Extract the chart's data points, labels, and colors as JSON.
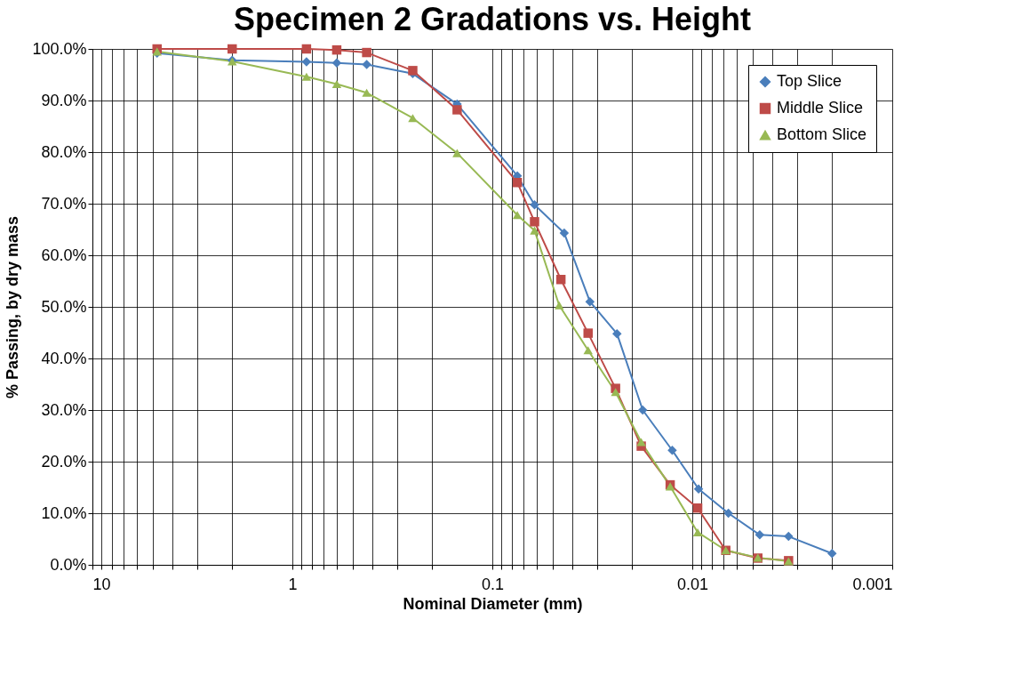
{
  "chart_data": {
    "type": "line",
    "title": "Specimen 2 Gradations vs. Height",
    "xlabel": "Nominal Diameter (mm)",
    "ylabel": "% Passing, by dry mass",
    "log": "x",
    "grid": true,
    "legend": "top right",
    "xlim": [
      10,
      0.001
    ],
    "xticks": [
      10,
      {
        "value": 9,
        "label": null
      },
      {
        "value": 8,
        "label": null
      },
      {
        "value": 7,
        "label": null
      },
      {
        "value": 6,
        "label": null
      },
      {
        "value": 5,
        "label": null
      },
      {
        "value": 4,
        "label": null
      },
      {
        "value": 3,
        "label": null
      },
      {
        "value": 2,
        "label": null
      },
      1,
      {
        "value": 0.9,
        "label": null
      },
      {
        "value": 0.8,
        "label": null
      },
      {
        "value": 0.7,
        "label": null
      },
      {
        "value": 0.6,
        "label": null
      },
      {
        "value": 0.5,
        "label": null
      },
      {
        "value": 0.4,
        "label": null
      },
      {
        "value": 0.3,
        "label": null
      },
      {
        "value": 0.2,
        "label": null
      },
      0.1,
      {
        "value": 0.09,
        "label": null
      },
      {
        "value": 0.08,
        "label": null
      },
      {
        "value": 0.07,
        "label": null
      },
      {
        "value": 0.06,
        "label": null
      },
      {
        "value": 0.05,
        "label": null
      },
      {
        "value": 0.04,
        "label": null
      },
      {
        "value": 0.03,
        "label": null
      },
      {
        "value": 0.02,
        "label": null
      },
      0.01,
      {
        "value": 0.009,
        "label": null
      },
      {
        "value": 0.008,
        "label": null
      },
      {
        "value": 0.007,
        "label": null
      },
      {
        "value": 0.006,
        "label": null
      },
      {
        "value": 0.005,
        "label": null
      },
      {
        "value": 0.004,
        "label": null
      },
      {
        "value": 0.003,
        "label": null
      },
      {
        "value": 0.002,
        "label": null
      },
      0.001
    ],
    "ylim": [
      0,
      100
    ],
    "yticks": [
      {
        "value": 0,
        "label": "0.0%"
      },
      {
        "value": 10,
        "label": "10.0%"
      },
      {
        "value": 20,
        "label": "20.0%"
      },
      {
        "value": 30,
        "label": "30.0%"
      },
      {
        "value": 40,
        "label": "40.0%"
      },
      {
        "value": 50,
        "label": "50.0%"
      },
      {
        "value": 60,
        "label": "60.0%"
      },
      {
        "value": 70,
        "label": "70.0%"
      },
      {
        "value": 80,
        "label": "80.0%"
      },
      {
        "value": 90,
        "label": "90.0%"
      },
      {
        "value": 100,
        "label": "100.0%"
      }
    ],
    "series": [
      {
        "name": "Top Slice",
        "color": "#4a7ebb",
        "marker": "diamond",
        "x": [
          4.75,
          2.0,
          0.85,
          0.6,
          0.425,
          0.25,
          0.15,
          0.075,
          0.0615,
          0.0437,
          0.0325,
          0.0238,
          0.0177,
          0.0126,
          0.0093,
          0.0066,
          0.0046,
          0.0033,
          0.002
        ],
        "values": [
          99.2,
          97.8,
          97.5,
          97.3,
          97.0,
          95.2,
          89.3,
          75.4,
          69.8,
          64.3,
          51.0,
          44.8,
          30.0,
          22.2,
          14.7,
          10.0,
          5.8,
          5.5,
          2.2
        ]
      },
      {
        "name": "Middle Slice",
        "color": "#be4b48",
        "marker": "square",
        "x": [
          4.75,
          2.0,
          0.85,
          0.6,
          0.425,
          0.25,
          0.15,
          0.075,
          0.0615,
          0.0454,
          0.0332,
          0.0242,
          0.018,
          0.0129,
          0.0094,
          0.0068,
          0.0047,
          0.0033
        ],
        "values": [
          100.0,
          100.0,
          100.0,
          99.8,
          99.3,
          95.8,
          88.2,
          74.1,
          66.5,
          55.3,
          44.9,
          34.2,
          23.0,
          15.5,
          11.0,
          2.8,
          1.3,
          0.8
        ]
      },
      {
        "name": "Bottom Slice",
        "color": "#98b954",
        "marker": "triangle",
        "x": [
          4.75,
          2.0,
          0.85,
          0.6,
          0.425,
          0.25,
          0.15,
          0.075,
          0.0615,
          0.0463,
          0.0332,
          0.0242,
          0.018,
          0.0129,
          0.0094,
          0.0068,
          0.0047,
          0.0033
        ],
        "values": [
          99.5,
          97.6,
          94.6,
          93.2,
          91.5,
          86.6,
          79.8,
          67.8,
          64.8,
          50.3,
          41.6,
          33.5,
          23.8,
          15.2,
          6.3,
          2.8,
          1.4,
          0.7
        ]
      }
    ]
  }
}
